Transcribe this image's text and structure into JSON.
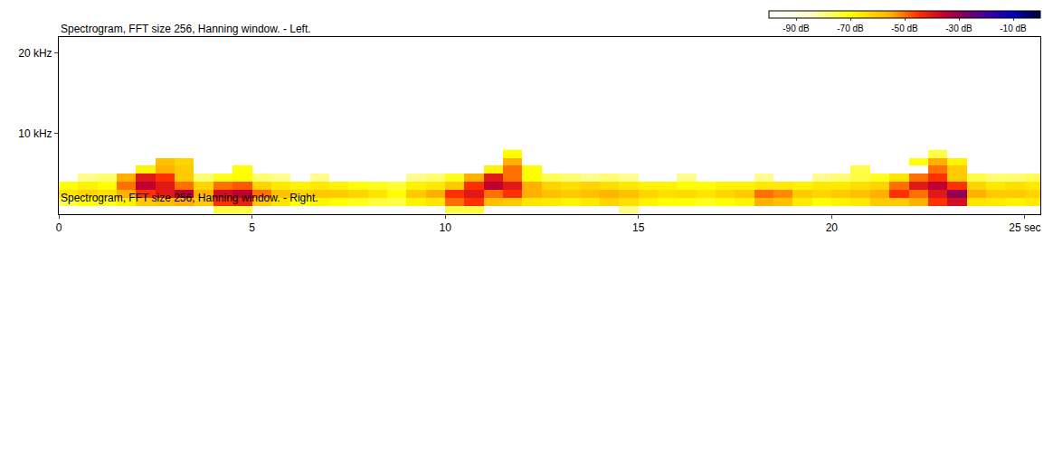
{
  "chart_data": [
    {
      "type": "heatmap",
      "title": "Spectrogram, FFT size 256, Hanning window. - Left.",
      "x": [
        0.25,
        0.75,
        1.25,
        1.75,
        2.25,
        2.75,
        3.25,
        3.75,
        4.25,
        4.75,
        5.25,
        5.75,
        6.25,
        6.75,
        7.25,
        7.75,
        8.25,
        8.75,
        9.25,
        9.75,
        10.25,
        10.75,
        11.25,
        11.75,
        12.25,
        12.75,
        13.25,
        13.75,
        14.25,
        14.75,
        15.25,
        15.75,
        16.25,
        16.75,
        17.25,
        17.75,
        18.25,
        18.75,
        19.25,
        19.75,
        20.25,
        20.75,
        21.25,
        21.75,
        22.25,
        22.75,
        23.25,
        23.75,
        24.25,
        24.75,
        25.25
      ],
      "y": [
        0.5,
        1.5,
        2.5,
        3.5,
        4.5,
        5.5,
        6.5,
        7.5
      ],
      "cells": [
        [
          null,
          null,
          null,
          null,
          null,
          null,
          null,
          null,
          -75,
          -75,
          null,
          null,
          null,
          null,
          null,
          null,
          null,
          null,
          null,
          null,
          -75,
          -75,
          null,
          null,
          null,
          null,
          null,
          null,
          null,
          -80,
          null,
          null,
          null,
          null,
          null,
          null,
          null,
          null,
          null,
          null,
          null,
          null,
          null,
          null,
          null,
          null,
          null,
          null,
          null,
          null,
          null
        ],
        [
          -75,
          -70,
          -72,
          -68,
          -60,
          -58,
          -55,
          -60,
          -45,
          -42,
          -60,
          -65,
          -70,
          -68,
          -70,
          -72,
          -74,
          -75,
          -68,
          -65,
          -50,
          -45,
          -58,
          -60,
          -65,
          -66,
          -68,
          -66,
          -62,
          -64,
          -68,
          -70,
          -70,
          -72,
          -70,
          -68,
          -55,
          -58,
          -66,
          -70,
          -68,
          -66,
          -60,
          -60,
          -55,
          -45,
          -38,
          -65,
          -66,
          -68,
          -66
        ],
        [
          -65,
          -62,
          -64,
          -55,
          -45,
          -40,
          -35,
          -55,
          -38,
          -35,
          -50,
          -58,
          -62,
          -60,
          -60,
          -62,
          -65,
          -70,
          -60,
          -55,
          -45,
          -40,
          -50,
          -45,
          -55,
          -58,
          -60,
          -58,
          -56,
          -58,
          -62,
          -64,
          -63,
          -65,
          -62,
          -60,
          -50,
          -52,
          -60,
          -62,
          -60,
          -58,
          -55,
          -45,
          -50,
          -40,
          -30,
          -55,
          -60,
          -60,
          -62
        ],
        [
          -70,
          -68,
          -70,
          -50,
          -35,
          -40,
          -50,
          -62,
          -50,
          -48,
          -62,
          -66,
          -68,
          -66,
          -68,
          -70,
          -72,
          -74,
          -68,
          -66,
          -60,
          -45,
          -35,
          -40,
          -55,
          -62,
          -64,
          -62,
          -64,
          -66,
          -68,
          -68,
          -70,
          -70,
          -68,
          -68,
          -66,
          -66,
          -68,
          -66,
          -66,
          -64,
          -62,
          -50,
          -40,
          -35,
          -45,
          -62,
          -66,
          -64,
          -66
        ],
        [
          null,
          -80,
          -78,
          -55,
          -40,
          -45,
          -60,
          -78,
          -72,
          -70,
          -78,
          -80,
          null,
          -80,
          null,
          null,
          null,
          null,
          -80,
          -78,
          -72,
          -55,
          -40,
          -50,
          -70,
          -76,
          -78,
          -80,
          -78,
          -80,
          null,
          null,
          -80,
          null,
          null,
          null,
          -80,
          null,
          null,
          -80,
          -78,
          -75,
          -72,
          -65,
          -50,
          -45,
          -60,
          -75,
          -78,
          -78,
          -76
        ],
        [
          null,
          null,
          null,
          null,
          -68,
          -55,
          -60,
          null,
          null,
          -70,
          null,
          null,
          null,
          null,
          null,
          null,
          null,
          null,
          null,
          null,
          null,
          null,
          -68,
          -50,
          -70,
          null,
          null,
          null,
          null,
          null,
          null,
          null,
          null,
          null,
          null,
          null,
          null,
          null,
          null,
          null,
          null,
          -75,
          null,
          null,
          null,
          -50,
          -60,
          null,
          null,
          null,
          null
        ],
        [
          null,
          null,
          null,
          null,
          null,
          -58,
          -62,
          null,
          null,
          null,
          null,
          null,
          null,
          null,
          null,
          null,
          null,
          null,
          null,
          null,
          null,
          null,
          null,
          -55,
          null,
          null,
          null,
          null,
          null,
          null,
          null,
          null,
          null,
          null,
          null,
          null,
          null,
          null,
          null,
          null,
          null,
          null,
          null,
          null,
          -70,
          -55,
          -68,
          null,
          null,
          null,
          null
        ],
        [
          null,
          null,
          null,
          null,
          null,
          null,
          null,
          null,
          null,
          null,
          null,
          null,
          null,
          null,
          null,
          null,
          null,
          null,
          null,
          null,
          null,
          null,
          null,
          -70,
          null,
          null,
          null,
          null,
          null,
          null,
          null,
          null,
          null,
          null,
          null,
          null,
          null,
          null,
          null,
          null,
          null,
          null,
          null,
          null,
          null,
          -75,
          null,
          null,
          null,
          null,
          null
        ]
      ],
      "xlim": [
        0,
        25.4
      ],
      "xticks": [
        0,
        5,
        10,
        15,
        20,
        {
          "value": 25,
          "label": "25 sec"
        }
      ],
      "ylim": [
        0,
        22
      ],
      "yticks": [
        {
          "value": 10,
          "label": "10 kHz"
        },
        {
          "value": 20,
          "label": "20 kHz"
        }
      ],
      "colorbar": {
        "range": [
          -100,
          0
        ],
        "ticks": [
          {
            "value": -90,
            "label": "-90 dB"
          },
          {
            "value": -70,
            "label": "-70 dB"
          },
          {
            "value": -50,
            "label": "-50 dB"
          },
          {
            "value": -30,
            "label": "-30 dB"
          },
          {
            "value": -10,
            "label": "-10 dB"
          }
        ]
      }
    },
    {
      "type": "heatmap",
      "title": "Spectrogram, FFT size 256, Hanning window. - Right.",
      "cells": [],
      "xlim": [
        0,
        25.4
      ],
      "xticks": [
        0,
        5,
        10,
        15,
        20,
        {
          "value": 25,
          "label": "25 sec"
        }
      ],
      "ylim": [
        0,
        22
      ],
      "yticks": [
        {
          "value": 10,
          "label": "10 kHz"
        },
        {
          "value": 20,
          "label": "20 kHz"
        }
      ]
    }
  ]
}
